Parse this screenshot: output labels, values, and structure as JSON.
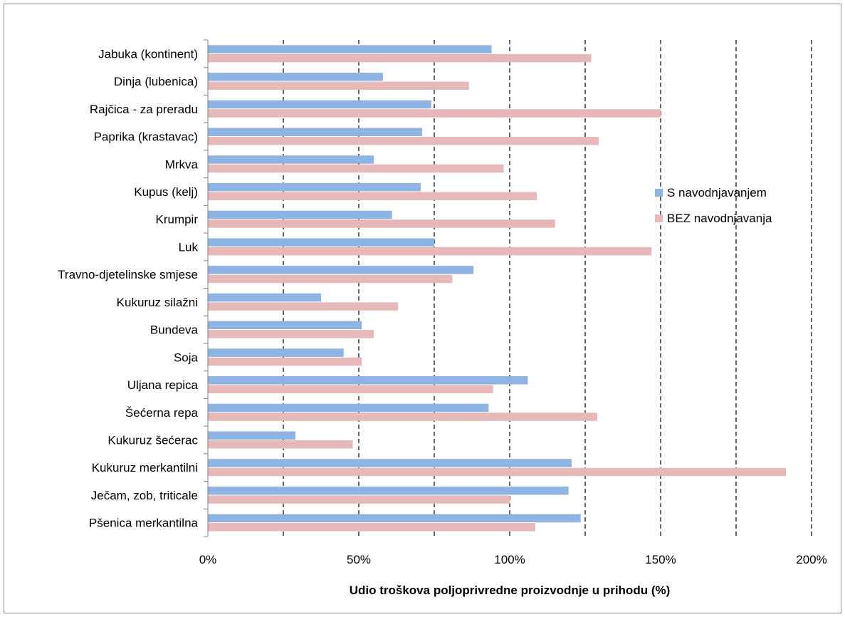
{
  "chart_data": {
    "type": "bar",
    "orientation": "horizontal",
    "title": "",
    "xlabel": "Udio troškova  poljoprivredne proizvodnje u prihodu (%)",
    "ylabel": "",
    "xlim": [
      0,
      200
    ],
    "x_ticks": [
      0,
      50,
      100,
      150,
      200
    ],
    "x_tick_labels": [
      "0%",
      "50%",
      "100%",
      "150%",
      "200%"
    ],
    "grid": "vertical dashed lines at 25% steps",
    "legend_position": "right",
    "categories": [
      "Jabuka (kontinent)",
      "Dinja (lubenica)",
      "Rajčica - za preradu",
      "Paprika (krastavac)",
      "Mrkva",
      "Kupus (kelj)",
      "Krumpir",
      "Luk",
      "Travno-djetelinske smjese",
      "Kukuruz silažni",
      "Bundeva",
      "Soja",
      "Uljana repica",
      "Šećerna repa",
      "Kukuruz šećerac",
      "Kukuruz merkantilni",
      "Ječam, zob, triticale",
      "Pšenica merkantilna"
    ],
    "series": [
      {
        "name": "S navodnjavanjem",
        "color": "#8eb4e3",
        "values": [
          94,
          58,
          74,
          71,
          55,
          70.5,
          61,
          75,
          88,
          37.5,
          51,
          45,
          106,
          93,
          29,
          120.5,
          119.5,
          123.5
        ]
      },
      {
        "name": "BEZ navodnjavanja",
        "color": "#e6b9b8",
        "values": [
          127,
          86.5,
          150,
          129.5,
          98,
          109,
          115,
          147,
          81,
          63,
          55,
          51,
          94.5,
          129,
          48,
          191.5,
          100,
          108.5
        ]
      }
    ]
  }
}
